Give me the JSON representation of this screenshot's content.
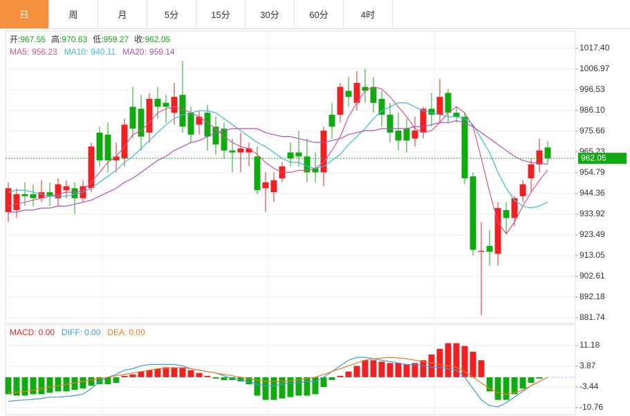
{
  "tabs": [
    "日",
    "周",
    "月",
    "5分",
    "15分",
    "30分",
    "60分",
    "4时"
  ],
  "active_tab": 0,
  "chart_data": [
    {
      "type": "candlestick",
      "ohlc_labels": [
        "开:",
        "高:",
        "低:",
        "收:"
      ],
      "up_color": "#ee2222",
      "down_color": "#11aa11",
      "open": [
        935,
        936,
        944,
        944,
        942,
        945,
        942,
        946,
        947,
        942,
        947,
        975,
        974,
        961,
        962,
        988,
        987,
        975,
        992,
        990,
        985,
        994,
        985,
        979,
        985,
        978,
        977,
        966,
        965,
        965,
        963,
        947,
        945,
        952,
        965,
        965,
        963,
        957,
        955,
        984,
        984,
        996,
        990,
        998,
        998,
        992,
        984,
        976,
        977,
        972,
        975,
        987,
        984,
        995,
        985,
        983,
        953,
        915,
        918,
        914,
        936,
        932,
        943,
        952,
        959,
        967.55
      ],
      "high": [
        950,
        947,
        950,
        949,
        951,
        950,
        952,
        951,
        950,
        951,
        970,
        978,
        980,
        970,
        982,
        998,
        994,
        995,
        998,
        994,
        1000,
        1011,
        988,
        986,
        989,
        983,
        980,
        972,
        975,
        970,
        968,
        955,
        955,
        960,
        970,
        976,
        972,
        965,
        978,
        990,
        1000,
        1003,
        1006,
        1007,
        1003,
        996,
        990,
        985,
        982,
        983,
        988,
        995,
        1002,
        997,
        988,
        985,
        955,
        930,
        926,
        940,
        940,
        943,
        951,
        962,
        972,
        970.63
      ],
      "low": [
        930,
        932,
        938,
        938,
        940,
        938,
        938,
        942,
        934,
        940,
        945,
        958,
        955,
        955,
        958,
        972,
        966,
        970,
        982,
        980,
        979,
        975,
        970,
        974,
        966,
        964,
        962,
        955,
        955,
        958,
        944,
        935,
        940,
        950,
        958,
        958,
        950,
        950,
        948,
        972,
        980,
        988,
        986,
        990,
        985,
        978,
        970,
        966,
        965,
        968,
        972,
        978,
        980,
        980,
        980,
        949,
        913,
        883,
        908,
        908,
        924,
        928,
        940,
        945,
        955,
        959.27
      ],
      "close": [
        947,
        944,
        943,
        942,
        945,
        943,
        949,
        948,
        942,
        948,
        968,
        961,
        961,
        963,
        979,
        977,
        973,
        992,
        988,
        988,
        993,
        978,
        974,
        983,
        973,
        969,
        966,
        965,
        967,
        967,
        946,
        950,
        951,
        958,
        962,
        963,
        955,
        955,
        976,
        978,
        998,
        993,
        1000,
        996,
        990,
        984,
        975,
        971,
        971,
        976,
        987,
        984,
        993,
        985,
        983,
        952,
        916,
        915.5,
        915,
        937,
        932,
        942,
        949,
        959,
        966,
        962.05
      ],
      "series": [
        {
          "name": "MA5:",
          "color": "#e0508a",
          "values": [
            938,
            939,
            940,
            941,
            942,
            943,
            944,
            945,
            945,
            946,
            950,
            955,
            960,
            963,
            968,
            974,
            976,
            980,
            985,
            987,
            988,
            987,
            985,
            983,
            980,
            977,
            973,
            970,
            968,
            967,
            964,
            960,
            957,
            955,
            955,
            956,
            956,
            957,
            960,
            966,
            973,
            983,
            990,
            996,
            998,
            997,
            993,
            988,
            983,
            977,
            975,
            976,
            980,
            985,
            988,
            985,
            978,
            962,
            945,
            930,
            924,
            930,
            938,
            945,
            951,
            956.23
          ]
        },
        {
          "name": "MA10:",
          "color": "#3bbcd6",
          "values": [
            945,
            946,
            946,
            945,
            944,
            943,
            943,
            943,
            944,
            945,
            947,
            950,
            953,
            956,
            960,
            963,
            967,
            971,
            975,
            979,
            982,
            984,
            985,
            986,
            986,
            985,
            982,
            979,
            976,
            973,
            970,
            968,
            965,
            962,
            960,
            960,
            958,
            957,
            958,
            961,
            964,
            969,
            973,
            977,
            982,
            986,
            988,
            990,
            990,
            988,
            986,
            985,
            984,
            983,
            983,
            982,
            979,
            972,
            965,
            955,
            947,
            941,
            938,
            937,
            938,
            940.11
          ]
        },
        {
          "name": "MA20:",
          "color": "#b050c0",
          "values": [
            935,
            935,
            936,
            936,
            937,
            937,
            938,
            938,
            939,
            940,
            941,
            943,
            945,
            947,
            950,
            952,
            955,
            958,
            961,
            963,
            966,
            968,
            970,
            971,
            973,
            975,
            976,
            977,
            977,
            977,
            977,
            975,
            974,
            973,
            973,
            972,
            971,
            970,
            970,
            971,
            972,
            974,
            975,
            976,
            976,
            977,
            977,
            977,
            977,
            978,
            978,
            979,
            980,
            980,
            981,
            980,
            978,
            975,
            972,
            969,
            966,
            963,
            961,
            960,
            959.5,
            959.14
          ]
        }
      ],
      "ylim": [
        878.96,
        1026.1
      ],
      "yticks": [
        {
          "value": 1017.4,
          "label": "1017.40"
        },
        1006.97,
        996.53,
        {
          "value": 986.1,
          "label": "986.10"
        },
        975.66,
        965.23,
        954.79,
        944.36,
        933.92,
        923.49,
        913.05,
        902.61,
        892.18,
        881.74
      ]
    },
    {
      "type": "macd",
      "up_color": "#ee2222",
      "down_color": "#11aa11",
      "series": [
        {
          "name": "MACD:",
          "color": "#ee2222",
          "kind": "bar",
          "value_label": "0.00",
          "values": [
            -6,
            -6.5,
            -6.5,
            -6,
            -6,
            -5.5,
            -5,
            -5,
            -4.5,
            -4,
            -3,
            -2.5,
            -2.5,
            -2,
            0.5,
            1,
            2,
            2.5,
            3,
            3.5,
            3.5,
            3.5,
            2.5,
            1.5,
            0.5,
            -0.5,
            -1,
            -1,
            -1.5,
            -2.5,
            -6.5,
            -8,
            -8,
            -7.5,
            -7,
            -6.5,
            -6.5,
            -6,
            -3.5,
            -1,
            0.5,
            2,
            4,
            6,
            6,
            5.5,
            5,
            5,
            4.5,
            5,
            6,
            8,
            10,
            12,
            12,
            11,
            9,
            6,
            -5,
            -8,
            -8,
            -6,
            -4,
            -2,
            -0.5,
            0.0
          ]
        },
        {
          "name": "DIFF:",
          "color": "#3b9be0",
          "kind": "line",
          "value_label": "0.00",
          "values": [
            -8.5,
            -8.2,
            -8,
            -7.8,
            -7.5,
            -7,
            -7,
            -6.8,
            -6.5,
            -6,
            -4,
            -1.5,
            0,
            1,
            2.5,
            3,
            4,
            4.5,
            4.5,
            4.5,
            4.5,
            4,
            3,
            2.5,
            2,
            1.5,
            0.5,
            -0.5,
            -1,
            -1.5,
            -2.5,
            -3,
            -3,
            -2.5,
            -2,
            -2,
            -1.5,
            -1.5,
            0,
            2,
            4,
            6,
            7,
            7,
            6.5,
            6,
            5.5,
            5,
            4.5,
            4.5,
            4,
            3.5,
            3.5,
            3,
            2.5,
            0,
            -4,
            -8,
            -10,
            -10.5,
            -9,
            -7,
            -5,
            -3,
            -1.5,
            0.0
          ]
        },
        {
          "name": "DEA:",
          "color": "#f07a1a",
          "kind": "line",
          "value_label": "0.00",
          "values": [
            -5.5,
            -5.3,
            -5,
            -4.5,
            -4,
            -3.5,
            -3,
            -2.5,
            -2,
            -1.5,
            -1,
            -0.5,
            0,
            0.5,
            1,
            1.5,
            2,
            2.5,
            3,
            3.2,
            3.3,
            3.3,
            3,
            2.5,
            2,
            1.5,
            1,
            0.5,
            0,
            -0.5,
            -1,
            -1.5,
            -1.5,
            -1.5,
            -1.2,
            -1,
            -0.5,
            0,
            1,
            2,
            3,
            4,
            5,
            6,
            6.5,
            6.8,
            7,
            6.8,
            6.5,
            6,
            5.5,
            5,
            4.5,
            4,
            3.5,
            2,
            0,
            -2,
            -4,
            -5.5,
            -6,
            -5.5,
            -4.5,
            -3,
            -1.5,
            0.0
          ]
        }
      ],
      "ylim": [
        -13.2,
        18.5
      ],
      "yticks": [
        11.18,
        3.87,
        -3.44,
        -10.76
      ]
    }
  ]
}
